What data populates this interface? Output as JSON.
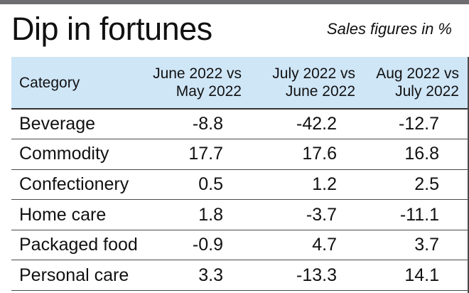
{
  "title": "Dip in fortunes",
  "subtitle": "Sales figures in %",
  "chart_data": {
    "type": "table",
    "columns": [
      "Category",
      "June 2022 vs May 2022",
      "July 2022 vs June 2022",
      "Aug 2022 vs July 2022"
    ],
    "header": {
      "category": "Category",
      "col1_line1": "June 2022 vs",
      "col1_line2": "May 2022",
      "col2_line1": "July 2022 vs",
      "col2_line2": "June 2022",
      "col3_line1": "Aug 2022 vs",
      "col3_line2": "July 2022"
    },
    "rows": [
      {
        "category": "Beverage",
        "values": [
          "-8.8",
          "-42.2",
          "-12.7"
        ]
      },
      {
        "category": "Commodity",
        "values": [
          "17.7",
          "17.6",
          "16.8"
        ]
      },
      {
        "category": "Confectionery",
        "values": [
          "0.5",
          "1.2",
          "2.5"
        ]
      },
      {
        "category": "Home care",
        "values": [
          "1.8",
          "-3.7",
          "-11.1"
        ]
      },
      {
        "category": "Packaged food",
        "values": [
          "-0.9",
          "4.7",
          "3.7"
        ]
      },
      {
        "category": "Personal care",
        "values": [
          "3.3",
          "-13.3",
          "14.1"
        ]
      }
    ]
  }
}
